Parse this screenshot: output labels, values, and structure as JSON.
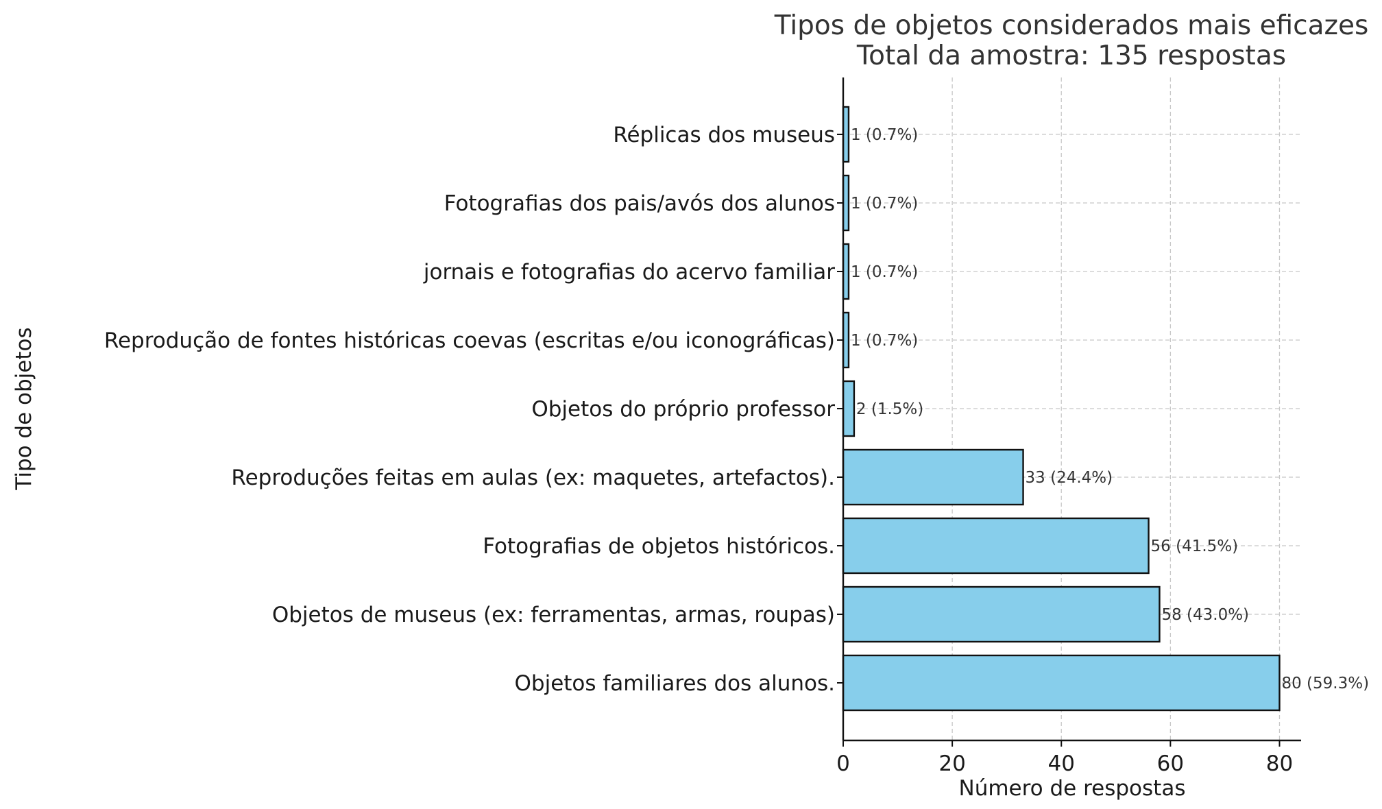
{
  "chart_data": {
    "type": "bar",
    "orientation": "horizontal",
    "title": "Tipos de objetos considerados mais eficazes",
    "subtitle": "Total da amostra: 135 respostas",
    "xlabel": "Número de respostas",
    "ylabel": "Tipo de objetos",
    "xlim": [
      0,
      84
    ],
    "xticks": [
      0,
      20,
      40,
      60,
      80
    ],
    "grid": true,
    "categories": [
      "Objetos familiares dos alunos.",
      "Objetos de museus (ex: ferramentas, armas, roupas)",
      "Fotografias de objetos históricos.",
      "Reproduções feitas em aulas (ex: maquetes, artefactos).",
      "Objetos do próprio professor",
      "Reprodução de fontes históricas coevas (escritas e/ou iconográficas)",
      "jornais e fotografias do acervo familiar",
      "Fotografias dos pais/avós dos alunos",
      "Réplicas dos museus"
    ],
    "values": [
      80,
      58,
      56,
      33,
      2,
      1,
      1,
      1,
      1
    ],
    "data_labels": [
      "80 (59.3%)",
      "58 (43.0%)",
      "56 (41.5%)",
      "33 (24.4%)",
      "2 (1.5%)",
      "1 (0.7%)",
      "1 (0.7%)",
      "1 (0.7%)",
      "1 (0.7%)"
    ],
    "colors": {
      "bar": "#87ceeb",
      "edge": "#111111",
      "grid": "#c8c8c8"
    }
  }
}
